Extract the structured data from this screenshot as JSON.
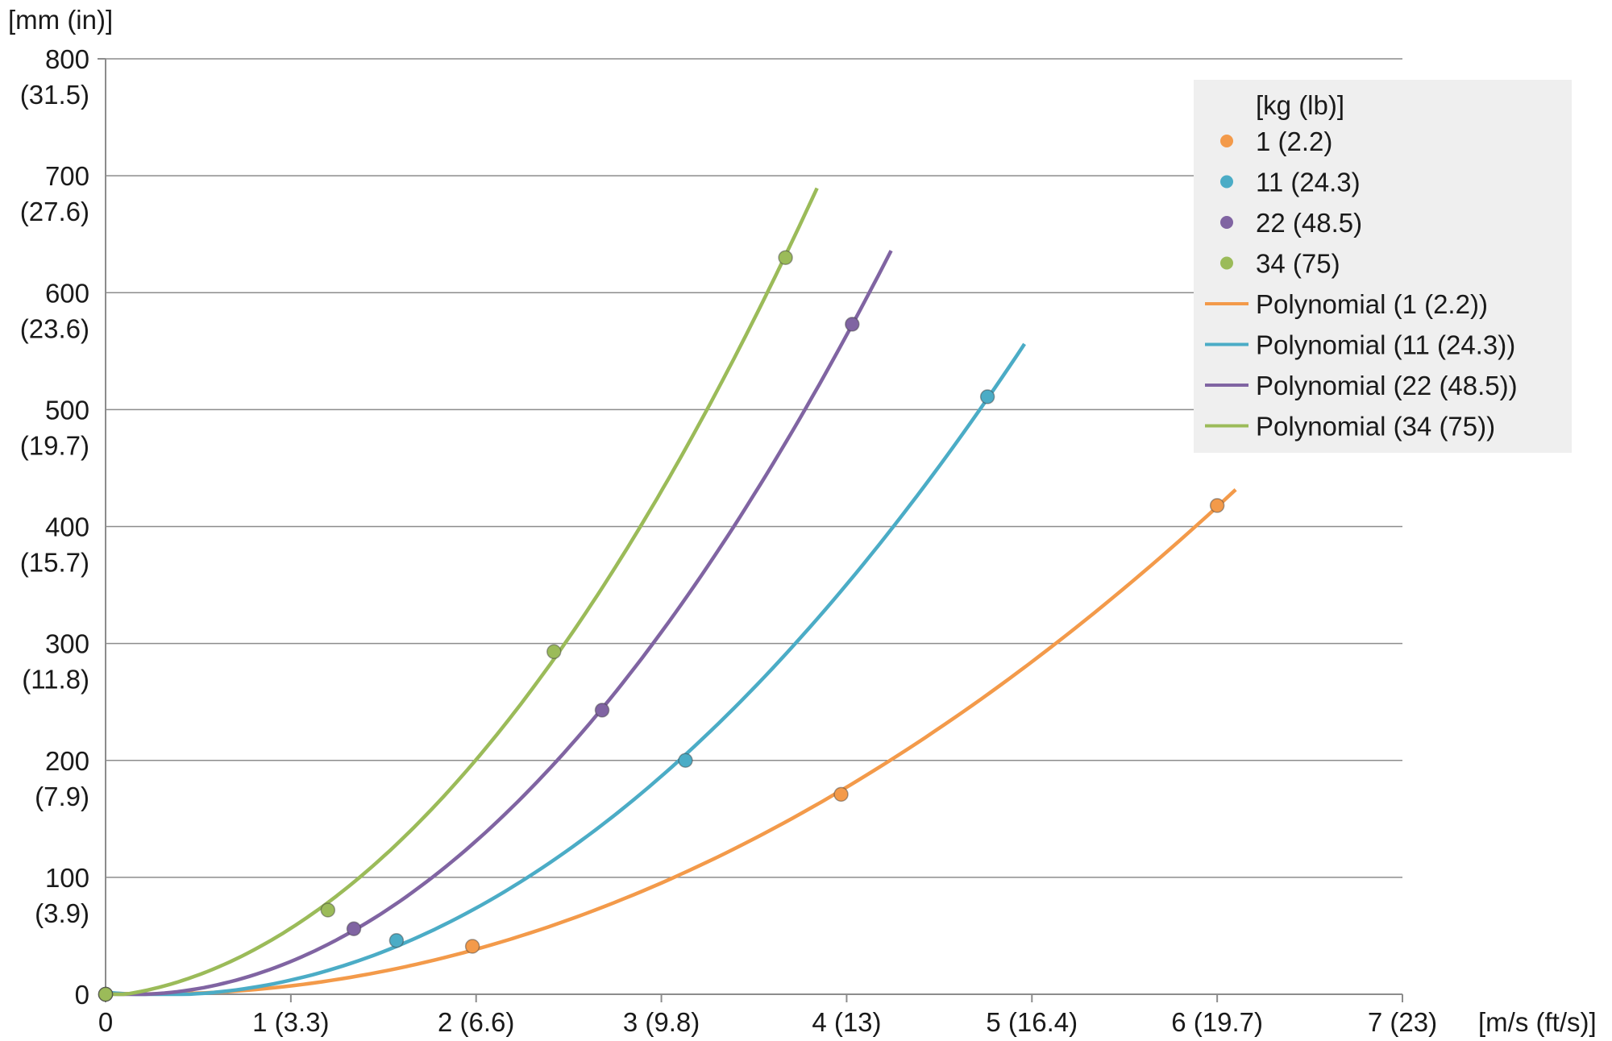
{
  "chart_data": {
    "type": "scatter",
    "ylabel": "[mm (in)]",
    "xlabel": "[m/s (ft/s)]",
    "xlim": [
      0,
      7
    ],
    "ylim": [
      0,
      800
    ],
    "grid": "horizontal",
    "legend_position": "top-right",
    "legend_title": "[kg (lb)]",
    "x_ticks": [
      {
        "value": 0,
        "label": "0"
      },
      {
        "value": 1,
        "label": "1 (3.3)"
      },
      {
        "value": 2,
        "label": "2 (6.6)"
      },
      {
        "value": 3,
        "label": "3 (9.8)"
      },
      {
        "value": 4,
        "label": "4 (13)"
      },
      {
        "value": 5,
        "label": "5 (16.4)"
      },
      {
        "value": 6,
        "label": "6 (19.7)"
      },
      {
        "value": 7,
        "label": "7 (23)"
      }
    ],
    "y_ticks": [
      {
        "value": 0,
        "label": "0",
        "sub": ""
      },
      {
        "value": 100,
        "label": "100",
        "sub": "(3.9)"
      },
      {
        "value": 200,
        "label": "200",
        "sub": "(7.9)"
      },
      {
        "value": 300,
        "label": "300",
        "sub": "(11.8)"
      },
      {
        "value": 400,
        "label": "400",
        "sub": "(15.7)"
      },
      {
        "value": 500,
        "label": "500",
        "sub": "(19.7)"
      },
      {
        "value": 600,
        "label": "600",
        "sub": "(23.6)"
      },
      {
        "value": 700,
        "label": "700",
        "sub": "(27.6)"
      },
      {
        "value": 800,
        "label": "800",
        "sub": "(31.5)"
      }
    ],
    "series": [
      {
        "name": "1 (2.2)",
        "trend_name": "Polynomial (1 (2.2))",
        "color": "#f39a4a",
        "x": [
          0,
          1.98,
          3.97,
          6.0
        ],
        "y": [
          0,
          41,
          171,
          418
        ],
        "trend_xmax": 6.1
      },
      {
        "name": "11 (24.3)",
        "trend_name": "Polynomial (11 (24.3))",
        "color": "#4bacc6",
        "x": [
          0,
          1.57,
          3.13,
          4.76
        ],
        "y": [
          0,
          46,
          200,
          511
        ],
        "trend_xmax": 4.96
      },
      {
        "name": "22 (48.5)",
        "trend_name": "Polynomial (22 (48.5))",
        "color": "#8064a2",
        "x": [
          0,
          1.34,
          2.68,
          4.03
        ],
        "y": [
          0,
          56,
          243,
          573
        ],
        "trend_xmax": 4.24
      },
      {
        "name": "34 (75)",
        "trend_name": "Polynomial (34 (75))",
        "color": "#9bbb59",
        "x": [
          0,
          1.2,
          2.42,
          3.67
        ],
        "y": [
          0,
          72,
          293,
          630
        ],
        "trend_xmax": 3.84
      }
    ]
  }
}
